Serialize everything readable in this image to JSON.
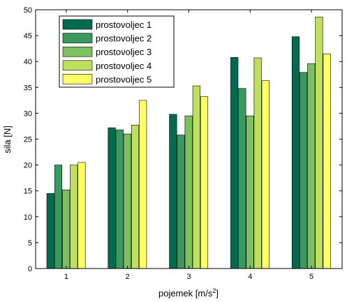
{
  "chart_data": {
    "type": "bar",
    "xlabel": "pojemek [m/s",
    "xlabel_sup": "2",
    "xlabel_end": "]",
    "ylabel": "sila [N]",
    "ylim": [
      0,
      50
    ],
    "yticks": [
      0,
      5,
      10,
      15,
      20,
      25,
      30,
      35,
      40,
      45,
      50
    ],
    "categories": [
      "1",
      "2",
      "3",
      "4",
      "5"
    ],
    "legend_position": "top-left",
    "grid": false,
    "series": [
      {
        "name": "prostovoljec 1",
        "color": "#006b4e",
        "values": [
          14.5,
          27.2,
          29.8,
          40.8,
          44.8
        ]
      },
      {
        "name": "prostovoljec 2",
        "color": "#3a9a5e",
        "values": [
          20.0,
          26.8,
          25.8,
          34.8,
          37.9
        ]
      },
      {
        "name": "prostovoljec 3",
        "color": "#7cc061",
        "values": [
          15.2,
          26.0,
          29.5,
          29.5,
          39.6
        ]
      },
      {
        "name": "prostovoljec 4",
        "color": "#bfe05e",
        "values": [
          20.0,
          27.7,
          35.3,
          40.7,
          48.6
        ]
      },
      {
        "name": "prostovoljec 5",
        "color": "#ffff66",
        "values": [
          20.5,
          32.5,
          33.2,
          36.3,
          41.5
        ]
      }
    ]
  }
}
